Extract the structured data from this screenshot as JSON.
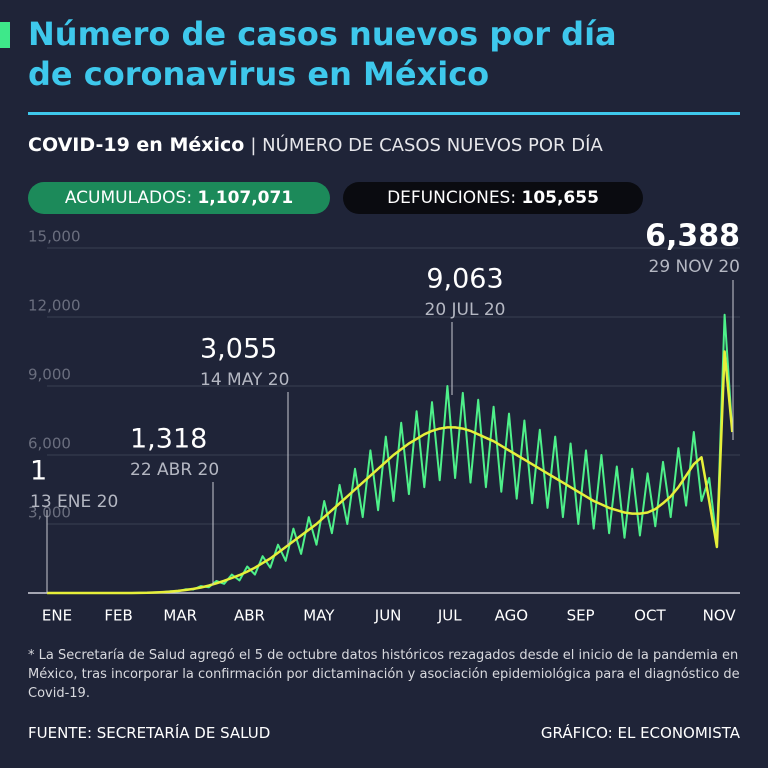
{
  "header": {
    "title_line1": "Número de casos nuevos por día",
    "title_line2": "de coronavirus en México",
    "subtitle_bold": "COVID-19 en México",
    "subtitle_rest": "| NÚMERO DE CASOS NUEVOS POR DÍA",
    "acum_label": "ACUMULADOS:",
    "acum_value": "1,107,071",
    "def_label": "DEFUNCIONES:",
    "def_value": "105,655"
  },
  "chart_data": {
    "type": "line",
    "categories": [
      "ENE",
      null,
      null,
      null,
      null,
      null,
      null,
      null,
      "FEB",
      null,
      null,
      null,
      null,
      null,
      null,
      null,
      "MAR",
      null,
      null,
      null,
      null,
      null,
      null,
      null,
      null,
      "ABR",
      null,
      null,
      null,
      null,
      null,
      null,
      null,
      null,
      "MAY",
      null,
      null,
      null,
      null,
      null,
      null,
      null,
      null,
      "JUN",
      null,
      null,
      null,
      null,
      null,
      null,
      null,
      "JUL",
      null,
      null,
      null,
      null,
      null,
      null,
      null,
      "AGO",
      null,
      null,
      null,
      null,
      null,
      null,
      null,
      null,
      "SEP",
      null,
      null,
      null,
      null,
      null,
      null,
      null,
      null,
      "OCT",
      null,
      null,
      null,
      null,
      null,
      null,
      null,
      null,
      "NOV",
      null,
      null,
      null
    ],
    "series": [
      {
        "color": "#4ef08a",
        "values": [
          0,
          0,
          0,
          0,
          0,
          0,
          0,
          0,
          0,
          0,
          0,
          0,
          3,
          15,
          25,
          30,
          80,
          70,
          160,
          150,
          300,
          250,
          520,
          400,
          800,
          550,
          1150,
          800,
          1600,
          1100,
          2100,
          1400,
          2800,
          1700,
          3300,
          2100,
          4000,
          2600,
          4700,
          3000,
          5400,
          3300,
          6200,
          3600,
          6800,
          4000,
          7400,
          4300,
          7900,
          4600,
          8300,
          4900,
          9000,
          5000,
          8700,
          4800,
          8400,
          4600,
          8100,
          4400,
          7800,
          4100,
          7500,
          3900,
          7100,
          3700,
          6800,
          3300,
          6500,
          3000,
          6200,
          2800,
          6000,
          2600,
          5500,
          2400,
          5400,
          2500,
          5200,
          2900,
          5700,
          3300,
          6300,
          3800,
          7000,
          4000,
          5000,
          2200,
          12100,
          7000
        ]
      },
      {
        "color": "#e6ef3a",
        "values": [
          0,
          0,
          0,
          0,
          0,
          0,
          0,
          0,
          0,
          0,
          0,
          0,
          5,
          10,
          20,
          40,
          60,
          90,
          130,
          180,
          240,
          320,
          420,
          530,
          650,
          780,
          930,
          1100,
          1300,
          1500,
          1750,
          2000,
          2250,
          2500,
          2750,
          3000,
          3300,
          3600,
          3900,
          4200,
          4500,
          4800,
          5100,
          5400,
          5700,
          6000,
          6250,
          6500,
          6700,
          6900,
          7050,
          7150,
          7200,
          7200,
          7150,
          7050,
          6900,
          6750,
          6600,
          6400,
          6200,
          6000,
          5800,
          5600,
          5400,
          5200,
          5000,
          4800,
          4600,
          4400,
          4200,
          4000,
          3850,
          3700,
          3600,
          3500,
          3450,
          3450,
          3500,
          3650,
          3900,
          4200,
          4600,
          5100,
          5600,
          5900,
          4000,
          2000,
          10500,
          7000
        ]
      }
    ],
    "ylim": [
      0,
      15500
    ],
    "yticks": [
      {
        "value": 3000,
        "label": "3,000"
      },
      {
        "value": 6000,
        "label": "6,000"
      },
      {
        "value": 9000,
        "label": "9,000"
      },
      {
        "value": 12000,
        "label": "12,000"
      },
      {
        "value": 15000,
        "label": "15,000"
      }
    ],
    "grid": true,
    "annotations": [
      {
        "label": "1",
        "date": "13 ENE 20"
      },
      {
        "label": "1,318",
        "date": "22 ABR 20"
      },
      {
        "label": "3,055",
        "date": "14 MAY 20"
      },
      {
        "label": "9,063",
        "date": "20 JUL 20"
      },
      {
        "label": "6,388",
        "date": "29 NOV 20"
      }
    ]
  },
  "footer": {
    "note": "* La Secretaría de Salud agregó el 5 de octubre datos históricos rezagados desde el inicio de la pandemia en México, tras incorporar la confirmación por dictaminación y asociación epidemiológica para el diagnóstico de Covid-19.",
    "source": "FUENTE: SECRETARÍA DE SALUD",
    "credit": "GRÁFICO: EL ECONOMISTA"
  }
}
